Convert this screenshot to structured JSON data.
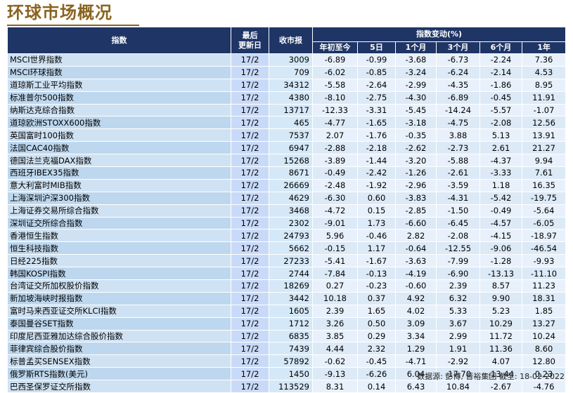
{
  "title": "环球市场概况",
  "headers": {
    "index": "指数",
    "update_line1": "最后",
    "update_line2": "更新日",
    "close": "收市报",
    "change_group": "指数变动(%)",
    "periods": [
      "年初至今",
      "5日",
      "1个月",
      "3个月",
      "6个月",
      "1年"
    ]
  },
  "rows": [
    {
      "name": "MSCI世界指数",
      "date": "17/2",
      "close": "3009",
      "chg": [
        "-6.89",
        "-0.99",
        "-3.68",
        "-6.73",
        "-2.24",
        "7.36"
      ]
    },
    {
      "name": "MSCI环球指数",
      "date": "17/2",
      "close": "709",
      "chg": [
        "-6.02",
        "-0.85",
        "-3.24",
        "-6.24",
        "-2.14",
        "4.53"
      ]
    },
    {
      "name": "道琼斯工业平均指数",
      "date": "17/2",
      "close": "34312",
      "chg": [
        "-5.58",
        "-2.64",
        "-2.99",
        "-4.35",
        "-1.86",
        "8.95"
      ]
    },
    {
      "name": "标准普尔500指数",
      "date": "17/2",
      "close": "4380",
      "chg": [
        "-8.10",
        "-2.75",
        "-4.30",
        "-6.89",
        "-0.45",
        "11.91"
      ]
    },
    {
      "name": "纳斯达克综合指数",
      "date": "17/2",
      "close": "13717",
      "chg": [
        "-12.33",
        "-3.31",
        "-5.45",
        "-14.24",
        "-5.57",
        "-1.07"
      ]
    },
    {
      "name": "道琼欧洲STOXX600指数",
      "date": "17/2",
      "close": "465",
      "chg": [
        "-4.77",
        "-1.65",
        "-3.18",
        "-4.75",
        "-2.08",
        "12.56"
      ]
    },
    {
      "name": "英国富时100指数",
      "date": "17/2",
      "close": "7537",
      "chg": [
        "2.07",
        "-1.76",
        "-0.35",
        "3.88",
        "5.13",
        "13.91"
      ]
    },
    {
      "name": "法国CAC40指数",
      "date": "17/2",
      "close": "6947",
      "chg": [
        "-2.88",
        "-2.18",
        "-2.62",
        "-2.73",
        "2.61",
        "21.27"
      ]
    },
    {
      "name": "德国法兰克福DAX指数",
      "date": "17/2",
      "close": "15268",
      "chg": [
        "-3.89",
        "-1.44",
        "-3.20",
        "-5.88",
        "-4.37",
        "9.94"
      ]
    },
    {
      "name": "西班牙IBEX35指数",
      "date": "17/2",
      "close": "8671",
      "chg": [
        "-0.49",
        "-2.42",
        "-1.26",
        "-2.61",
        "-3.33",
        "7.61"
      ]
    },
    {
      "name": "意大利富时MIB指数",
      "date": "17/2",
      "close": "26669",
      "chg": [
        "-2.48",
        "-1.92",
        "-2.96",
        "-3.59",
        "1.18",
        "16.35"
      ]
    },
    {
      "name": "上海深圳沪深300指数",
      "date": "17/2",
      "close": "4629",
      "chg": [
        "-6.30",
        "0.60",
        "-3.83",
        "-4.31",
        "-5.42",
        "-19.75"
      ]
    },
    {
      "name": "上海证券交易所综合指数",
      "date": "17/2",
      "close": "3468",
      "chg": [
        "-4.72",
        "0.15",
        "-2.85",
        "-1.50",
        "-0.49",
        "-5.64"
      ]
    },
    {
      "name": "深圳证交所综合指数",
      "date": "17/2",
      "close": "2302",
      "chg": [
        "-9.01",
        "1.73",
        "-6.60",
        "-6.45",
        "-4.57",
        "-6.05"
      ]
    },
    {
      "name": "香港恒生指数",
      "date": "17/2",
      "close": "24793",
      "chg": [
        "5.96",
        "-0.46",
        "2.82",
        "-2.08",
        "-4.15",
        "-18.97"
      ]
    },
    {
      "name": "恒生科技指数",
      "date": "17/2",
      "close": "5662",
      "chg": [
        "-0.15",
        "1.17",
        "-0.64",
        "-12.55",
        "-9.06",
        "-46.54"
      ]
    },
    {
      "name": "日经225指数",
      "date": "17/2",
      "close": "27233",
      "chg": [
        "-5.41",
        "-1.67",
        "-3.63",
        "-7.99",
        "-1.28",
        "-9.93"
      ]
    },
    {
      "name": "韩国KOSPI指数",
      "date": "17/2",
      "close": "2744",
      "chg": [
        "-7.84",
        "-0.13",
        "-4.19",
        "-6.90",
        "-13.13",
        "-11.10"
      ]
    },
    {
      "name": "台湾证交所加权股价指数",
      "date": "17/2",
      "close": "18269",
      "chg": [
        "0.27",
        "-0.23",
        "-0.60",
        "2.39",
        "8.57",
        "11.23"
      ]
    },
    {
      "name": "新加坡海峡时报指数",
      "date": "17/2",
      "close": "3442",
      "chg": [
        "10.18",
        "0.37",
        "4.92",
        "6.32",
        "9.90",
        "18.31"
      ]
    },
    {
      "name": "富时马来西亚证交所KLCI指数",
      "date": "17/2",
      "close": "1605",
      "chg": [
        "2.39",
        "1.65",
        "4.02",
        "5.33",
        "5.23",
        "1.85"
      ]
    },
    {
      "name": "泰国曼谷SET指数",
      "date": "17/2",
      "close": "1712",
      "chg": [
        "3.26",
        "0.50",
        "3.09",
        "3.67",
        "10.29",
        "13.27"
      ]
    },
    {
      "name": "印度尼西亚雅加达综合股价指数",
      "date": "17/2",
      "close": "6835",
      "chg": [
        "3.85",
        "0.29",
        "3.34",
        "2.99",
        "11.72",
        "10.24"
      ]
    },
    {
      "name": "菲律宾综合股价指数",
      "date": "17/2",
      "close": "7439",
      "chg": [
        "4.44",
        "2.32",
        "1.29",
        "1.91",
        "11.36",
        "8.60"
      ]
    },
    {
      "name": "标普孟买SENSEX指数",
      "date": "17/2",
      "close": "57892",
      "chg": [
        "-0.62",
        "-0.45",
        "-4.71",
        "-2.92",
        "4.07",
        "12.80"
      ]
    },
    {
      "name": "俄罗斯RTS指数(美元)",
      "date": "17/2",
      "close": "1450",
      "chg": [
        "-9.13",
        "-6.26",
        "6.04",
        "-17.70",
        "-13.44",
        "0.23"
      ]
    },
    {
      "name": "巴西圣保罗证交所指数",
      "date": "17/2",
      "close": "113529",
      "chg": [
        "8.31",
        "0.14",
        "6.43",
        "10.84",
        "-2.67",
        "-4.76"
      ]
    }
  ],
  "source": "数据源: 彭博, 晋裕集团 截至: 18-02-2022"
}
